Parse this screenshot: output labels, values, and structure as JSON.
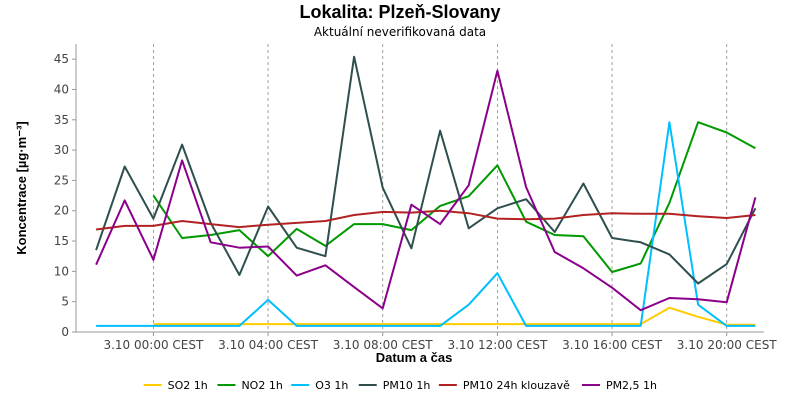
{
  "chart_data": {
    "type": "line",
    "title": "Lokalita: Plzeň-Slovany",
    "subtitle": "Aktuální neverifikovaná data",
    "xlabel": "Datum a čas",
    "ylabel": "Koncentrace [µg·m⁻³]",
    "ylim": [
      0,
      47.5
    ],
    "yticks": [
      0,
      5,
      10,
      15,
      20,
      25,
      30,
      35,
      40,
      45
    ],
    "xlim": [
      -2.7,
      21.3
    ],
    "xticks": [
      {
        "x": 0,
        "label": "3.10 00:00 CEST"
      },
      {
        "x": 4,
        "label": "3.10 04:00 CEST"
      },
      {
        "x": 8,
        "label": "3.10 08:00 CEST"
      },
      {
        "x": 12,
        "label": "3.10 12:00 CEST"
      },
      {
        "x": 16,
        "label": "3.10 16:00 CEST"
      },
      {
        "x": 20,
        "label": "3.10 20:00 CEST"
      }
    ],
    "series": [
      {
        "name": "SO2 1h",
        "color": "#ffcc00",
        "x": [
          0,
          1,
          2,
          3,
          4,
          5,
          6,
          7,
          8,
          9,
          10,
          11,
          12,
          13,
          14,
          15,
          16,
          17,
          18,
          19,
          20,
          21
        ],
        "values": [
          1.3,
          1.3,
          1.3,
          1.3,
          1.3,
          1.3,
          1.3,
          1.3,
          1.3,
          1.3,
          1.3,
          1.3,
          1.3,
          1.3,
          1.3,
          1.3,
          1.3,
          1.3,
          4.0,
          2.5,
          1.2,
          1.2
        ]
      },
      {
        "name": "NO2 1h",
        "color": "#009900",
        "x": [
          0,
          1,
          2,
          3,
          4,
          5,
          6,
          7,
          8,
          9,
          10,
          11,
          12,
          13,
          14,
          15,
          16,
          17,
          18,
          19,
          20,
          21
        ],
        "values": [
          22.5,
          15.5,
          16.0,
          16.8,
          12.5,
          17.0,
          14.2,
          17.8,
          17.8,
          16.8,
          20.8,
          22.4,
          27.5,
          18.2,
          16.0,
          15.8,
          9.9,
          11.3,
          21.3,
          34.6,
          32.9,
          30.3
        ]
      },
      {
        "name": "O3 1h",
        "color": "#00bfff",
        "x": [
          -2,
          -1,
          0,
          1,
          2,
          3,
          4,
          5,
          6,
          7,
          8,
          9,
          10,
          11,
          12,
          13,
          14,
          15,
          16,
          17,
          18,
          19,
          20,
          21
        ],
        "values": [
          1.0,
          1.0,
          1.0,
          1.0,
          1.0,
          1.0,
          5.3,
          1.0,
          1.0,
          1.0,
          1.0,
          1.0,
          1.0,
          4.5,
          9.7,
          1.0,
          1.0,
          1.0,
          1.0,
          1.0,
          34.6,
          4.5,
          1.0,
          1.0
        ]
      },
      {
        "name": "PM10 1h",
        "color": "#2f4f4f",
        "x": [
          -2,
          -1,
          0,
          1,
          2,
          3,
          4,
          5,
          6,
          7,
          8,
          9,
          10,
          11,
          12,
          13,
          14,
          15,
          16,
          17,
          18,
          19,
          20,
          21
        ],
        "values": [
          13.5,
          27.3,
          18.7,
          30.9,
          18.0,
          9.4,
          20.7,
          13.9,
          12.5,
          45.4,
          23.8,
          13.8,
          33.2,
          17.1,
          20.4,
          21.9,
          16.5,
          24.5,
          15.5,
          14.8,
          12.8,
          8.0,
          11.2,
          20.4
        ]
      },
      {
        "name": "PM10 24h klouzavě",
        "color": "#b22222",
        "x": [
          -2,
          -1,
          0,
          1,
          2,
          3,
          4,
          5,
          6,
          7,
          8,
          9,
          10,
          11,
          12,
          13,
          14,
          15,
          16,
          17,
          18,
          19,
          20,
          21
        ],
        "values": [
          16.9,
          17.5,
          17.5,
          18.3,
          17.8,
          17.3,
          17.7,
          18.0,
          18.3,
          19.3,
          19.8,
          19.7,
          20.0,
          19.6,
          18.7,
          18.6,
          18.7,
          19.3,
          19.6,
          19.5,
          19.5,
          19.1,
          18.8,
          19.3
        ]
      },
      {
        "name": "PM2,5 1h",
        "color": "#8b008b",
        "x": [
          -2,
          -1,
          0,
          1,
          2,
          3,
          4,
          5,
          6,
          7,
          8,
          9,
          10,
          11,
          12,
          13,
          14,
          15,
          16,
          17,
          18,
          19,
          20,
          21
        ],
        "values": [
          11.1,
          21.7,
          11.9,
          28.3,
          14.8,
          13.9,
          14.1,
          9.3,
          11.0,
          7.4,
          3.9,
          21.0,
          17.8,
          24.2,
          43.1,
          23.9,
          13.2,
          10.5,
          7.3,
          3.6,
          5.6,
          5.4,
          4.9,
          22.2
        ]
      }
    ],
    "legend": [
      {
        "label": "SO2 1h",
        "color": "#ffcc00"
      },
      {
        "label": "NO2 1h",
        "color": "#009900"
      },
      {
        "label": "O3 1h",
        "color": "#00bfff"
      },
      {
        "label": "PM10 1h",
        "color": "#2f4f4f"
      },
      {
        "label": "PM10 24h klouzavě",
        "color": "#b22222"
      },
      {
        "label": "PM2,5 1h",
        "color": "#8b008b"
      }
    ],
    "legend_position": "bottom",
    "grid": true
  }
}
